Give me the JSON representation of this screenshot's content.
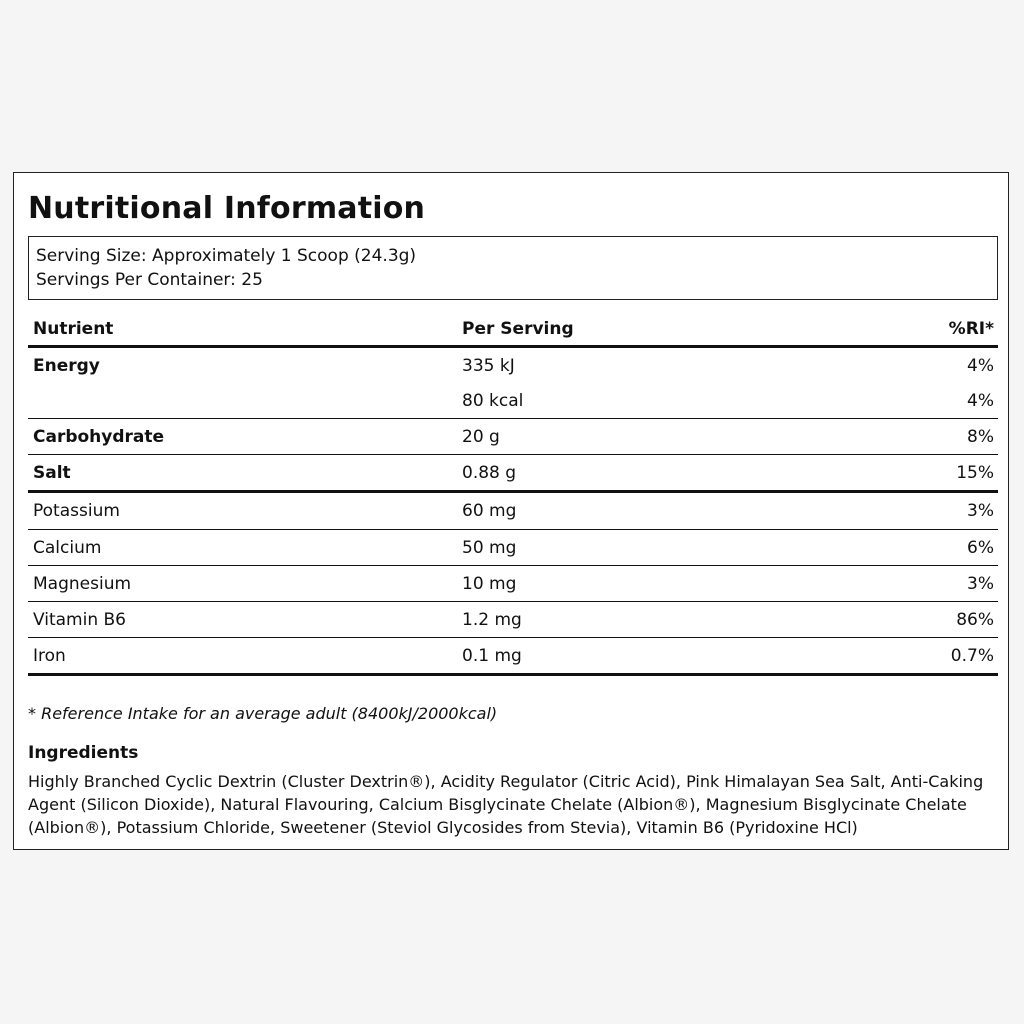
{
  "title": "Nutritional Information",
  "serving": {
    "size": "Serving Size: Approximately 1 Scoop (24.3g)",
    "per_container": "Servings Per Container: 25"
  },
  "table": {
    "headers": [
      "Nutrient",
      "Per Serving",
      "%RI*"
    ],
    "rows": [
      {
        "nutrient": "Energy",
        "per_serving": "335 kJ",
        "ri": "4%"
      },
      {
        "nutrient": "",
        "per_serving": "80 kcal",
        "ri": "4%"
      },
      {
        "nutrient": "Carbohydrate",
        "per_serving": "20 g",
        "ri": "8%"
      },
      {
        "nutrient": "Salt",
        "per_serving": "0.88 g",
        "ri": "15%"
      },
      {
        "nutrient": "Potassium",
        "per_serving": "60 mg",
        "ri": "3%"
      },
      {
        "nutrient": "Calcium",
        "per_serving": "50 mg",
        "ri": "6%"
      },
      {
        "nutrient": "Magnesium",
        "per_serving": "10 mg",
        "ri": "3%"
      },
      {
        "nutrient": "Vitamin B6",
        "per_serving": "1.2 mg",
        "ri": "86%"
      },
      {
        "nutrient": "Iron",
        "per_serving": "0.1 mg",
        "ri": "0.7%"
      }
    ]
  },
  "footnote": "* Reference Intake for an average adult (8400kJ/2000kcal)",
  "ingredients": {
    "title": "Ingredients",
    "text": "Highly Branched Cyclic Dextrin (Cluster Dextrin®), Acidity Regulator (Citric Acid), Pink Himalayan Sea Salt, Anti-Caking Agent (Silicon Dioxide), Natural Flavouring, Calcium Bisglycinate Chelate (Albion®), Magnesium Bisglycinate Chelate (Albion®), Potassium Chloride, Sweetener (Steviol Glycosides from Stevia), Vitamin B6 (Pyridoxine HCl)"
  }
}
